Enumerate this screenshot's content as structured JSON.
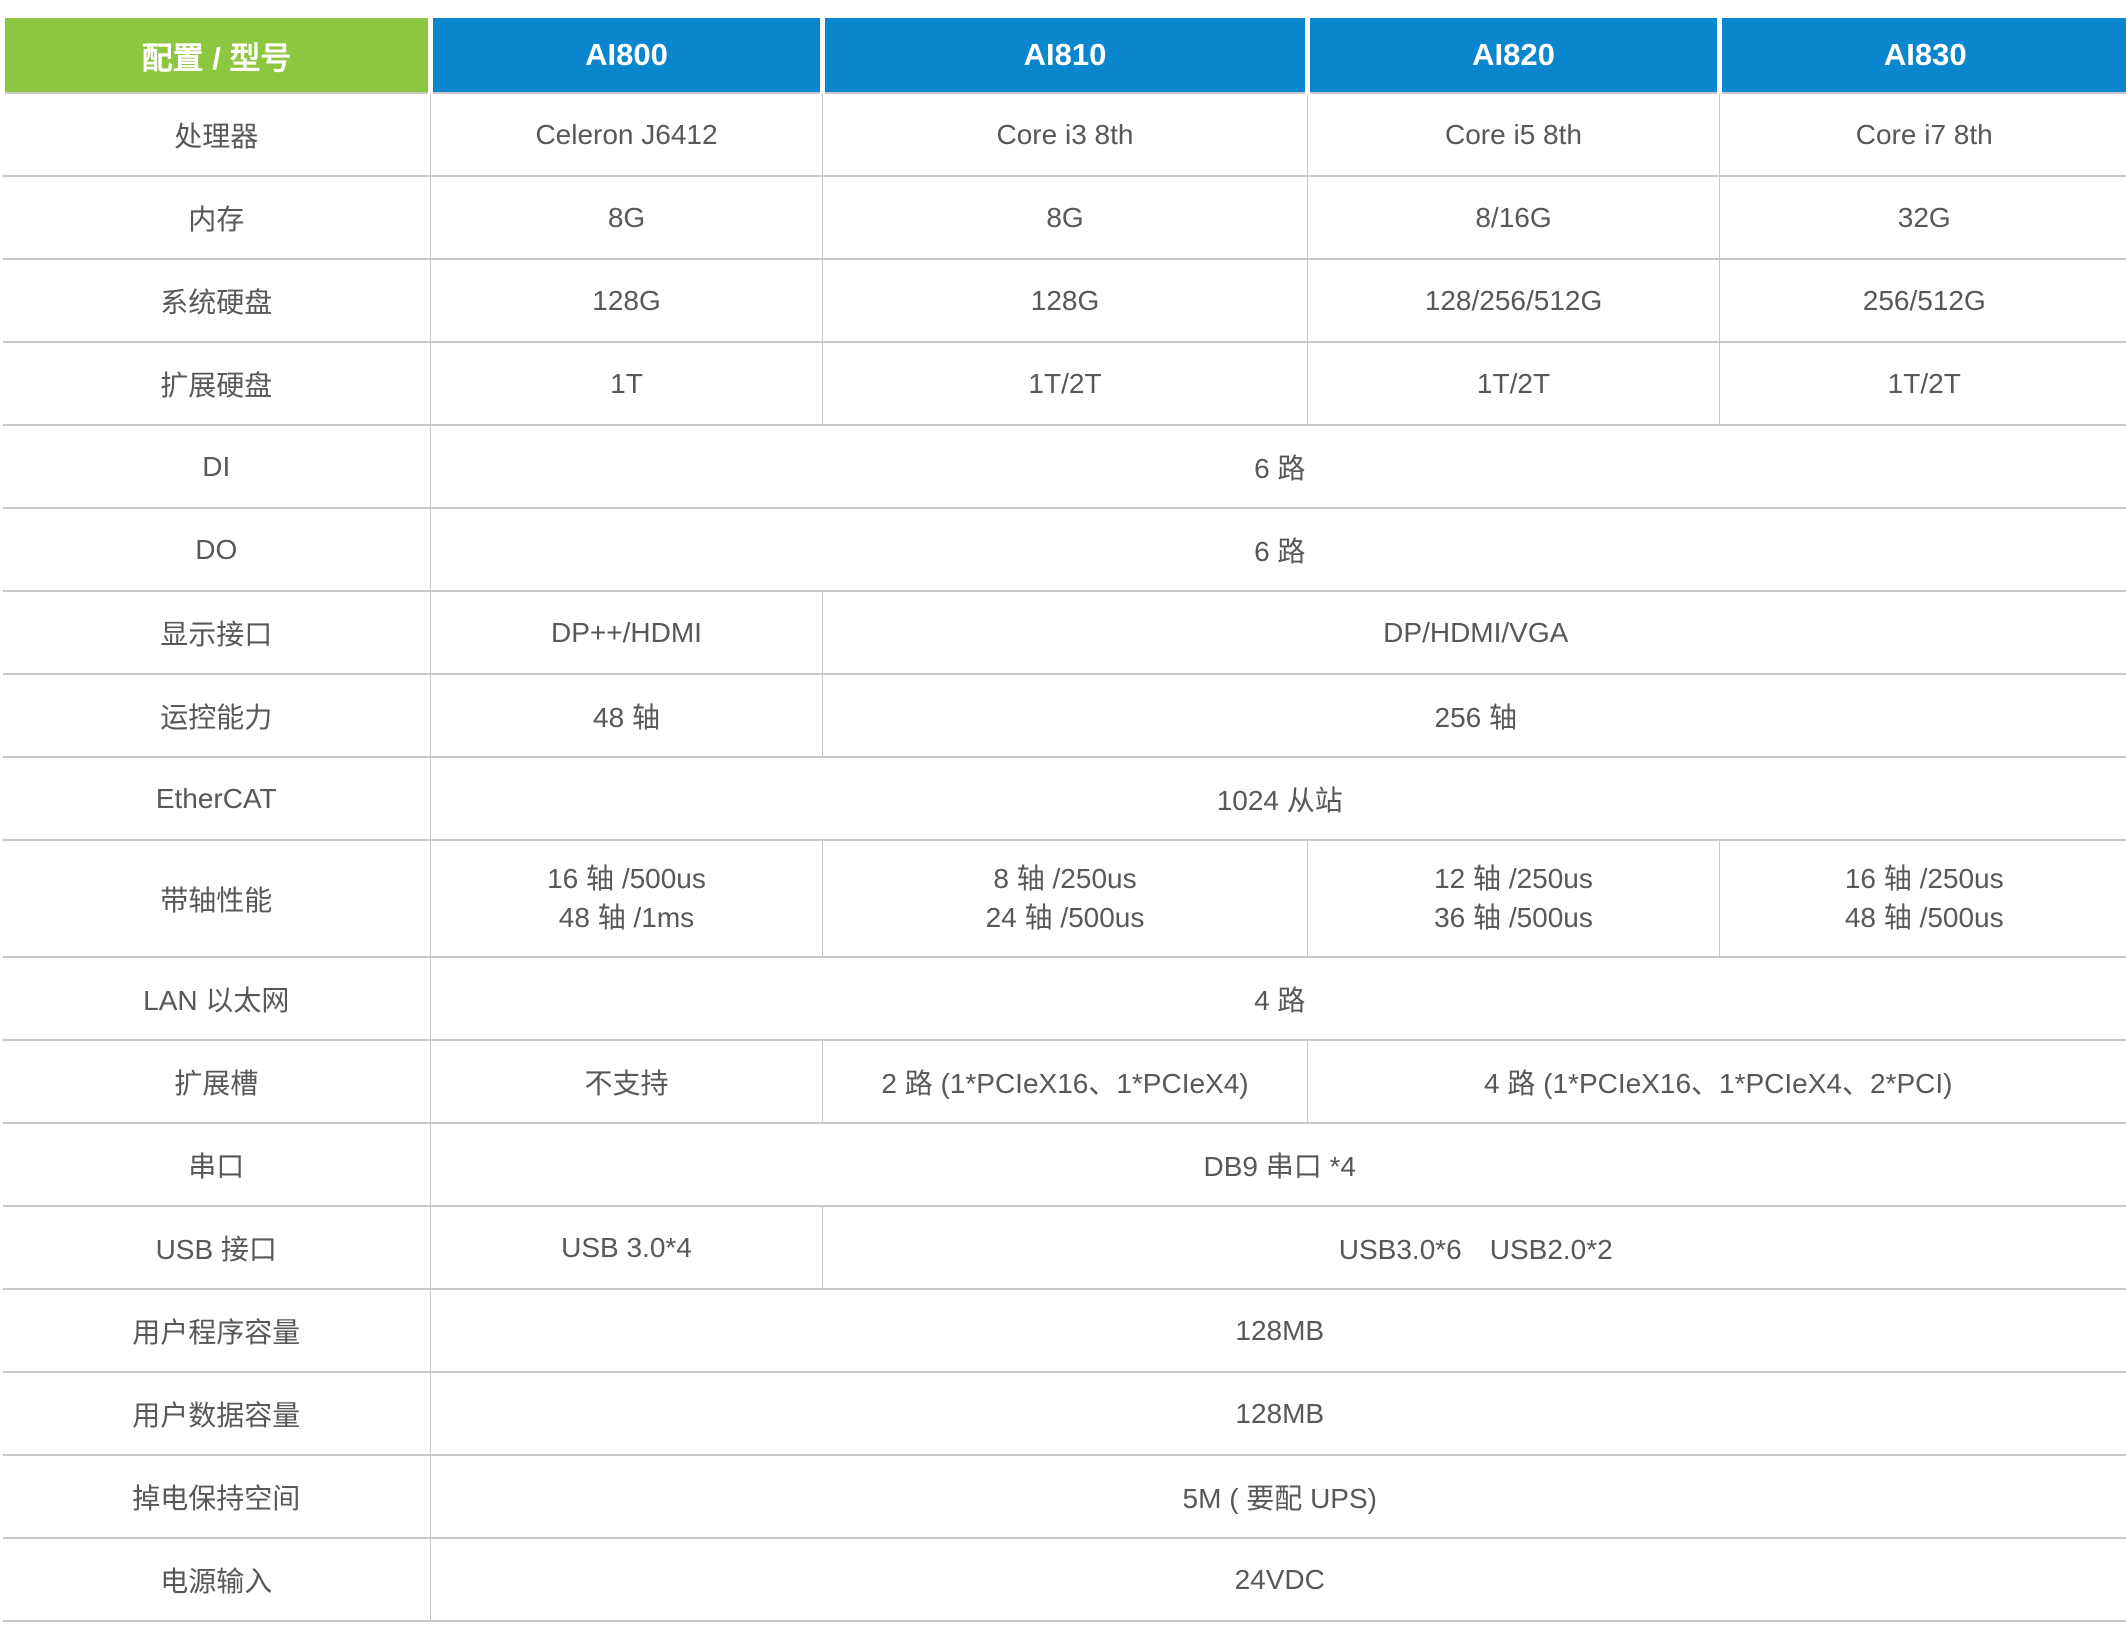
{
  "colors": {
    "header_green": "#8dc63f",
    "header_blue": "#0a86ce",
    "grid_line": "#c9c9c9",
    "text_gray": "#595757",
    "header_text": "#ffffff"
  },
  "table": {
    "header": {
      "col0": "配置 / 型号",
      "models": [
        "AI800",
        "AI810",
        "AI820",
        "AI830"
      ]
    },
    "rows": {
      "cpu": {
        "label": "处理器",
        "v0": "Celeron J6412",
        "v1": "Core i3 8th",
        "v2": "Core i5 8th",
        "v3": "Core i7 8th"
      },
      "ram": {
        "label": "内存",
        "v0": "8G",
        "v1": "8G",
        "v2": "8/16G",
        "v3": "32G"
      },
      "sysdisk": {
        "label": "系统硬盘",
        "v0": "128G",
        "v1": "128G",
        "v2": "128/256/512G",
        "v3": "256/512G"
      },
      "expdisk": {
        "label": "扩展硬盘",
        "v0": "1T",
        "v1": "1T/2T",
        "v2": "1T/2T",
        "v3": "1T/2T"
      },
      "di": {
        "label": "DI",
        "v": "6 路"
      },
      "do": {
        "label": "DO",
        "v": "6 路"
      },
      "display": {
        "label": "显示接口",
        "v0": "DP++/HDMI",
        "v1": "DP/HDMI/VGA"
      },
      "motion": {
        "label": "运控能力",
        "v0": "48 轴",
        "v1": "256 轴"
      },
      "ethercat": {
        "label": "EtherCAT",
        "v": "1024 从站"
      },
      "axisperf": {
        "label": "带轴性能",
        "v0l1": "16 轴 /500us",
        "v0l2": "48 轴 /1ms",
        "v1l1": "8 轴 /250us",
        "v1l2": "24 轴 /500us",
        "v2l1": "12 轴 /250us",
        "v2l2": "36 轴 /500us",
        "v3l1": "16 轴 /250us",
        "v3l2": "48 轴 /500us"
      },
      "lan": {
        "label": "LAN 以太网",
        "v": "4 路"
      },
      "slots": {
        "label": "扩展槽",
        "v0": "不支持",
        "v1": "2 路 (1*PCIeX16、1*PCIeX4)",
        "v2": "4 路 (1*PCIeX16、1*PCIeX4、2*PCI)"
      },
      "serial": {
        "label": "串口",
        "v": "DB9 串口 *4"
      },
      "usb": {
        "label": "USB 接口",
        "v0": "USB 3.0*4",
        "v1": "USB3.0*6　USB2.0*2"
      },
      "userprog": {
        "label": "用户程序容量",
        "v": "128MB"
      },
      "userdata": {
        "label": "用户数据容量",
        "v": "128MB"
      },
      "retain": {
        "label": "掉电保持空间",
        "v": "5M ( 要配 UPS)"
      },
      "power": {
        "label": "电源输入",
        "v": "24VDC"
      }
    }
  }
}
